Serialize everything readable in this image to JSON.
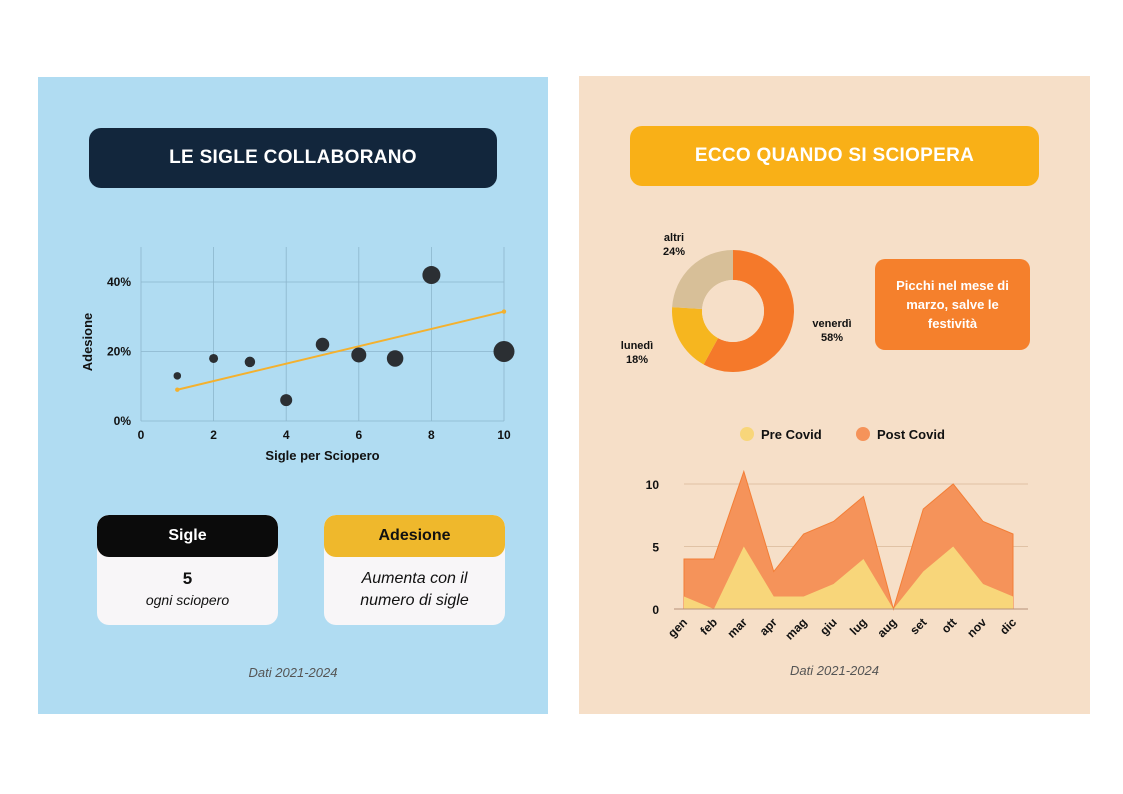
{
  "left_panel": {
    "title": "LE SIGLE COLLABORANO",
    "card_sigle": {
      "header": "Sigle",
      "value": "5",
      "sub": "ogni sciopero"
    },
    "card_adesione": {
      "header": "Adesione",
      "text": "Aumenta con il numero di sigle"
    },
    "source": "Dati 2021-2024"
  },
  "right_panel": {
    "title": "ECCO QUANDO SI SCIOPERA",
    "note": "Picchi nel mese di marzo, salve le festività",
    "source": "Dati 2021-2024"
  },
  "colors": {
    "scatter_point": "#2b2f33",
    "trend_line": "#f4b12e",
    "donut_venerdi": "#f5792a",
    "donut_lunedi": "#f6b61f",
    "donut_altri": "#d7bf98",
    "area_pre": "#f8d67a",
    "area_post": "#f5935a"
  },
  "chart_data": [
    {
      "type": "scatter",
      "xlabel": "Sigle per Sciopero",
      "ylabel": "Adesione",
      "xlim": [
        0,
        10
      ],
      "ylim": [
        0,
        40
      ],
      "xticks": [
        "0",
        "2",
        "4",
        "6",
        "8",
        "10"
      ],
      "yticks": [
        "0%",
        "20%",
        "40%"
      ],
      "grid": true,
      "points": [
        {
          "x": 1,
          "y": 13,
          "size": 1
        },
        {
          "x": 2,
          "y": 18,
          "size": 2
        },
        {
          "x": 3,
          "y": 17,
          "size": 3
        },
        {
          "x": 4,
          "y": 6,
          "size": 4
        },
        {
          "x": 5,
          "y": 22,
          "size": 5
        },
        {
          "x": 6,
          "y": 19,
          "size": 6
        },
        {
          "x": 7,
          "y": 18,
          "size": 7
        },
        {
          "x": 8,
          "y": 42,
          "size": 8
        },
        {
          "x": 10,
          "y": 20,
          "size": 10
        }
      ],
      "trend": {
        "x": [
          1,
          10
        ],
        "y": [
          9,
          31.5
        ]
      }
    },
    {
      "type": "pie",
      "donut": true,
      "slices": [
        {
          "label": "venerdì",
          "pct_label": "58%",
          "value": 58
        },
        {
          "label": "lunedì",
          "pct_label": "18%",
          "value": 18
        },
        {
          "label": "altri",
          "pct_label": "24%",
          "value": 24
        }
      ]
    },
    {
      "type": "area",
      "categories": [
        "gen",
        "feb",
        "mar",
        "apr",
        "mag",
        "giu",
        "lug",
        "aug",
        "set",
        "ott",
        "nov",
        "dic"
      ],
      "ylim": [
        0,
        10
      ],
      "yticks": [
        "0",
        "5",
        "10"
      ],
      "legend": "top",
      "series": [
        {
          "name": "Pre Covid",
          "values": [
            1,
            0,
            5,
            1,
            1,
            2,
            4,
            0,
            3,
            5,
            2,
            1
          ]
        },
        {
          "name": "Post Covid",
          "values": [
            4,
            4,
            11,
            3,
            6,
            7,
            9,
            0,
            8,
            10,
            7,
            6
          ]
        }
      ]
    }
  ]
}
